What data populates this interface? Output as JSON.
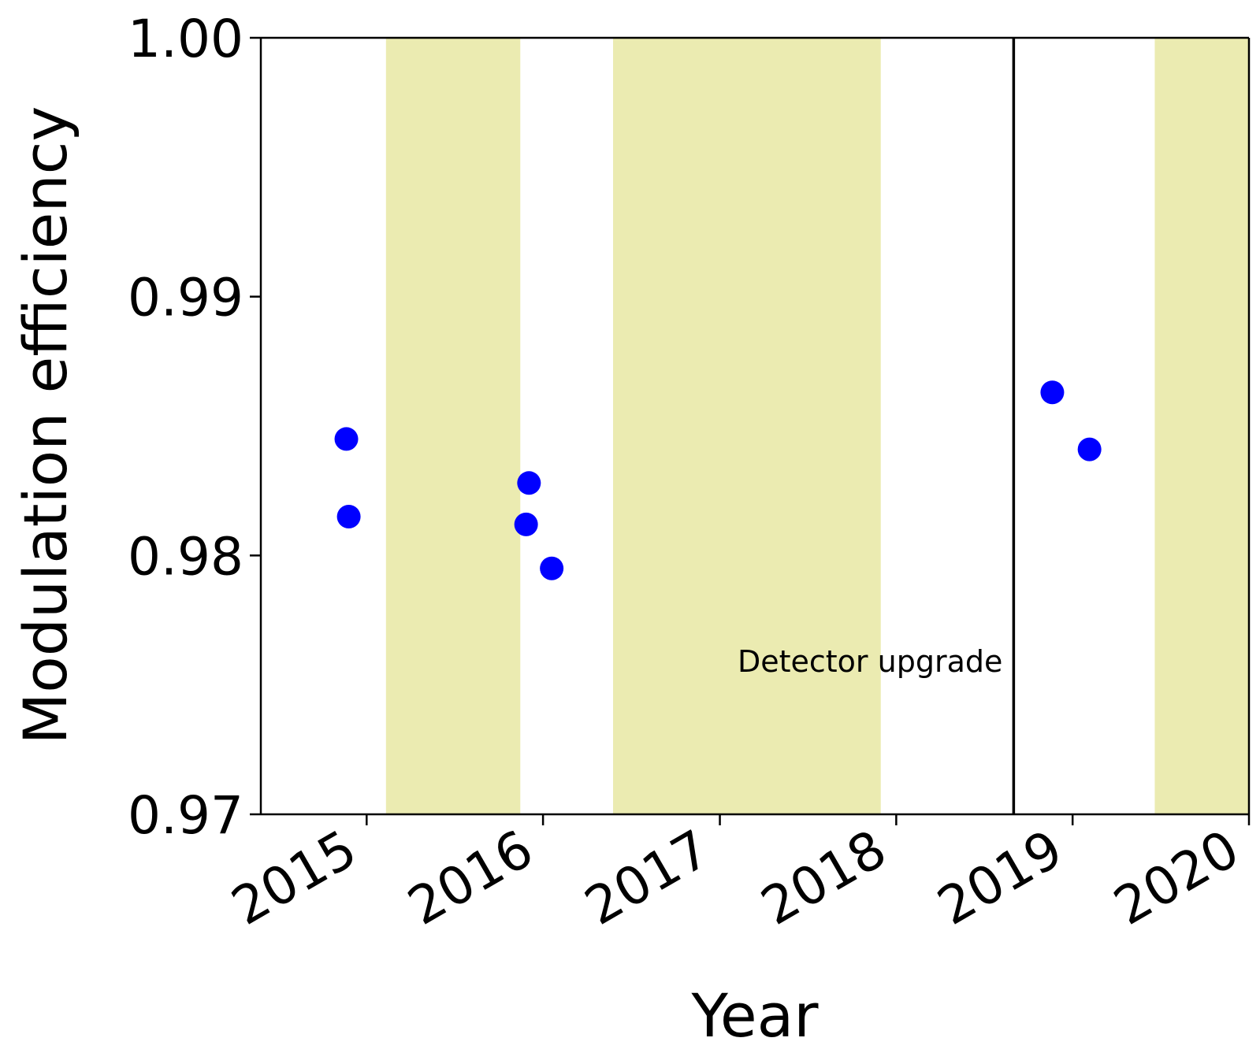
{
  "chart_data": {
    "type": "scatter",
    "title": "",
    "xlabel": "Year",
    "ylabel": "Modulation efficiency",
    "xlim": [
      "2014-05-27",
      "2020-01-01"
    ],
    "ylim": [
      0.97,
      1.0
    ],
    "x_ticks": [
      "2015-01-01",
      "2016-01-01",
      "2017-01-01",
      "2018-01-01",
      "2019-01-01",
      "2020-01-01"
    ],
    "x_tick_labels": [
      "2015",
      "2016",
      "2017",
      "2018",
      "2019",
      "2020"
    ],
    "y_ticks": [
      0.97,
      0.98,
      0.99,
      1.0
    ],
    "y_tick_labels": [
      "0.97",
      "0.98",
      "0.99",
      "1.00"
    ],
    "grid": false,
    "series": [
      {
        "color": "#0000ff",
        "points": [
          {
            "x": "2014-11-20",
            "y": 0.9845
          },
          {
            "x": "2014-11-25",
            "y": 0.9815
          },
          {
            "x": "2015-11-27",
            "y": 0.9812
          },
          {
            "x": "2015-12-03",
            "y": 0.9828
          },
          {
            "x": "2016-01-19",
            "y": 0.9795
          }
        ]
      },
      {
        "color": "#0000ff",
        "points": [
          {
            "x": "2018-11-20",
            "y": 0.9863
          },
          {
            "x": "2019-02-05",
            "y": 0.9841
          }
        ]
      }
    ],
    "shaded_periods": [
      {
        "start": "2015-02-10",
        "end": "2015-11-15",
        "color": "#ebebb1"
      },
      {
        "start": "2016-05-25",
        "end": "2017-11-30",
        "color": "#ebebb1"
      },
      {
        "start": "2019-06-20",
        "end": "2020-01-01",
        "color": "#ebebb1"
      }
    ],
    "vertical_lines": [
      {
        "x": "2018-09-01",
        "color": "#000000"
      }
    ],
    "annotations": [
      {
        "text": "Detector upgrade",
        "x": "2018-09-01",
        "y": 0.9755
      }
    ]
  }
}
